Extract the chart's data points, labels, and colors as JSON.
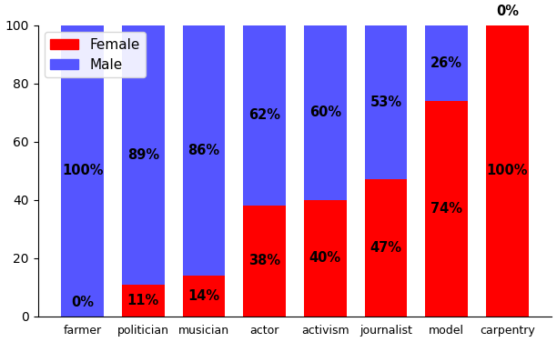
{
  "categories": [
    "farmer",
    "politician",
    "musician",
    "actor",
    "activism",
    "journalist",
    "model",
    "carpentry"
  ],
  "female_pct": [
    0,
    11,
    14,
    38,
    40,
    47,
    74,
    100
  ],
  "male_pct": [
    100,
    89,
    86,
    62,
    60,
    53,
    26,
    0
  ],
  "female_color": "#ff0000",
  "male_color": "#5555ff",
  "female_label": "Female",
  "male_label": "Male",
  "ylim": [
    0,
    100
  ],
  "yticks": [
    0,
    20,
    40,
    60,
    80,
    100
  ],
  "bar_width": 0.7,
  "label_fontsize": 10.5,
  "legend_fontsize": 11,
  "figwidth": 6.12,
  "figheight": 3.76,
  "dpi": 100
}
